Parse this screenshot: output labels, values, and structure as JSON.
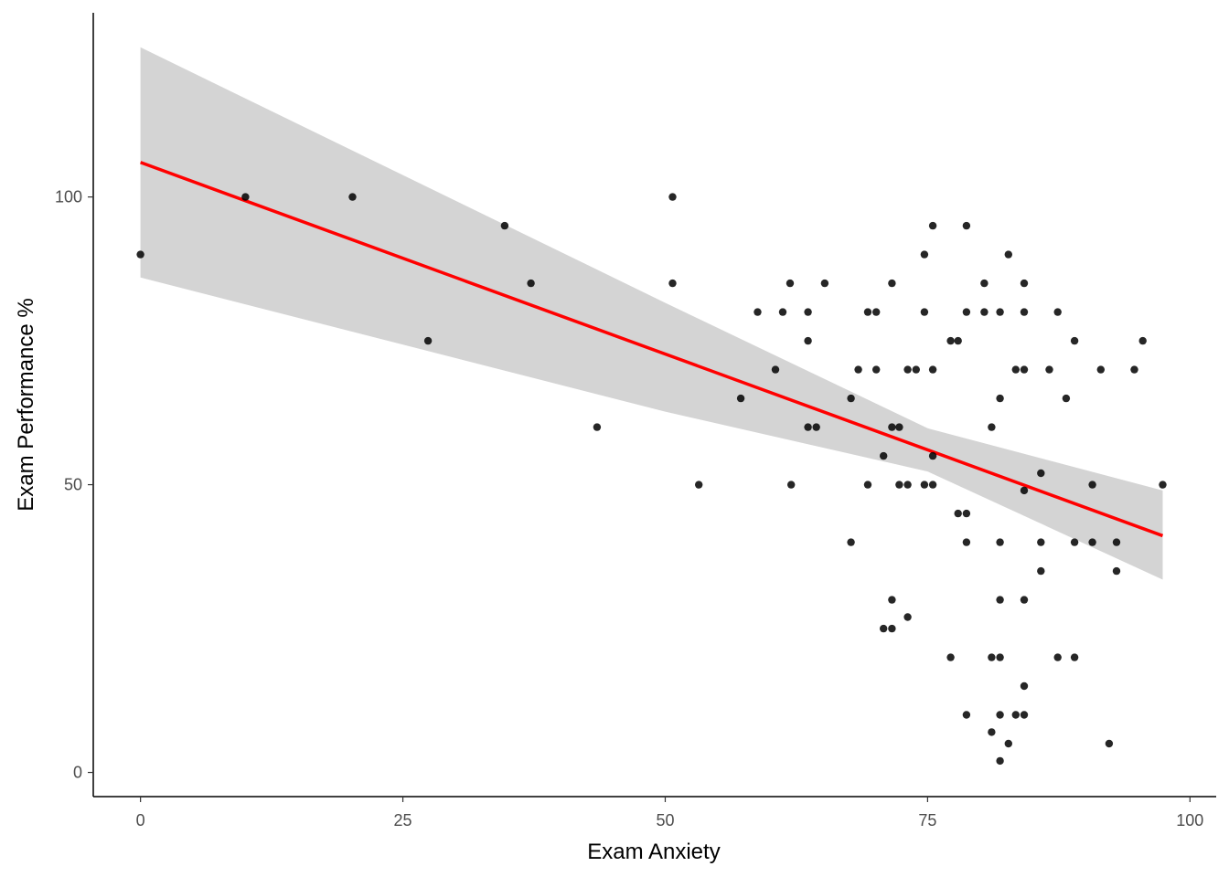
{
  "chart_data": {
    "type": "scatter",
    "title": "",
    "xlabel": "Exam Anxiety",
    "ylabel": "Exam Performance %",
    "xlim": [
      -4.5,
      102.5
    ],
    "ylim": [
      -4.2,
      132
    ],
    "x_ticks": [
      0,
      25,
      50,
      75,
      100
    ],
    "x_tick_labels": [
      "0",
      "25",
      "50",
      "75",
      "100"
    ],
    "y_ticks": [
      0,
      50,
      100
    ],
    "y_tick_labels": [
      "0",
      "50",
      "100"
    ],
    "grid": false,
    "legend": "none",
    "points": [
      [
        0,
        90
      ],
      [
        10,
        100
      ],
      [
        20.2,
        100
      ],
      [
        27.4,
        75
      ],
      [
        34.7,
        95
      ],
      [
        37.2,
        85
      ],
      [
        43.5,
        60
      ],
      [
        50.7,
        100
      ],
      [
        50.7,
        85
      ],
      [
        53.2,
        50
      ],
      [
        57.2,
        65
      ],
      [
        58.8,
        80
      ],
      [
        60.5,
        70
      ],
      [
        61.2,
        80
      ],
      [
        61.9,
        85
      ],
      [
        62,
        50
      ],
      [
        63.6,
        80
      ],
      [
        63.6,
        75
      ],
      [
        63.6,
        60
      ],
      [
        64.4,
        60
      ],
      [
        65.2,
        85
      ],
      [
        67.7,
        65
      ],
      [
        67.7,
        40
      ],
      [
        68.4,
        70
      ],
      [
        69.3,
        80
      ],
      [
        69.3,
        50
      ],
      [
        70.1,
        80
      ],
      [
        70.1,
        70
      ],
      [
        70.8,
        55
      ],
      [
        70.8,
        25
      ],
      [
        71.6,
        85
      ],
      [
        71.6,
        60
      ],
      [
        71.6,
        30
      ],
      [
        71.6,
        25
      ],
      [
        72.3,
        60
      ],
      [
        72.3,
        50
      ],
      [
        73.1,
        70
      ],
      [
        73.1,
        50
      ],
      [
        73.1,
        27
      ],
      [
        73.9,
        70
      ],
      [
        74.7,
        90
      ],
      [
        74.7,
        80
      ],
      [
        74.7,
        50
      ],
      [
        75.5,
        95
      ],
      [
        75.5,
        70
      ],
      [
        75.5,
        55
      ],
      [
        75.5,
        50
      ],
      [
        77.2,
        75
      ],
      [
        77.2,
        20
      ],
      [
        77.9,
        75
      ],
      [
        77.9,
        45
      ],
      [
        78.7,
        95
      ],
      [
        78.7,
        80
      ],
      [
        78.7,
        45
      ],
      [
        78.7,
        40
      ],
      [
        78.7,
        10
      ],
      [
        80.4,
        85
      ],
      [
        80.4,
        80
      ],
      [
        81.1,
        60
      ],
      [
        81.1,
        20
      ],
      [
        81.1,
        7
      ],
      [
        81.9,
        80
      ],
      [
        81.9,
        65
      ],
      [
        81.9,
        40
      ],
      [
        81.9,
        30
      ],
      [
        81.9,
        20
      ],
      [
        81.9,
        10
      ],
      [
        81.9,
        2
      ],
      [
        82.7,
        90
      ],
      [
        82.7,
        5
      ],
      [
        83.4,
        70
      ],
      [
        83.4,
        10
      ],
      [
        84.2,
        85
      ],
      [
        84.2,
        80
      ],
      [
        84.2,
        70
      ],
      [
        84.2,
        49
      ],
      [
        84.2,
        30
      ],
      [
        84.2,
        15
      ],
      [
        84.2,
        10
      ],
      [
        85.8,
        52
      ],
      [
        85.8,
        40
      ],
      [
        85.8,
        35
      ],
      [
        86.6,
        70
      ],
      [
        87.4,
        80
      ],
      [
        87.4,
        20
      ],
      [
        88.2,
        65
      ],
      [
        89,
        75
      ],
      [
        89,
        40
      ],
      [
        89,
        20
      ],
      [
        90.7,
        50
      ],
      [
        90.7,
        40
      ],
      [
        91.5,
        70
      ],
      [
        92.3,
        5
      ],
      [
        93,
        40
      ],
      [
        93,
        35
      ],
      [
        94.7,
        70
      ],
      [
        95.5,
        75
      ],
      [
        97.4,
        50
      ]
    ],
    "fit": {
      "method": "lm",
      "color": "#ff0000",
      "x_range": [
        0,
        97.4
      ],
      "intercept": 106,
      "slope": -0.666,
      "ci_lower": [
        [
          0,
          86
        ],
        [
          50,
          62.7
        ],
        [
          75,
          52.3
        ],
        [
          97.4,
          33.5
        ]
      ],
      "ci_upper": [
        [
          0,
          126
        ],
        [
          50,
          81.6
        ],
        [
          75,
          59.8
        ],
        [
          97.4,
          49
        ]
      ],
      "band_color": "#d4d4d4"
    },
    "point_color": "#000000"
  }
}
